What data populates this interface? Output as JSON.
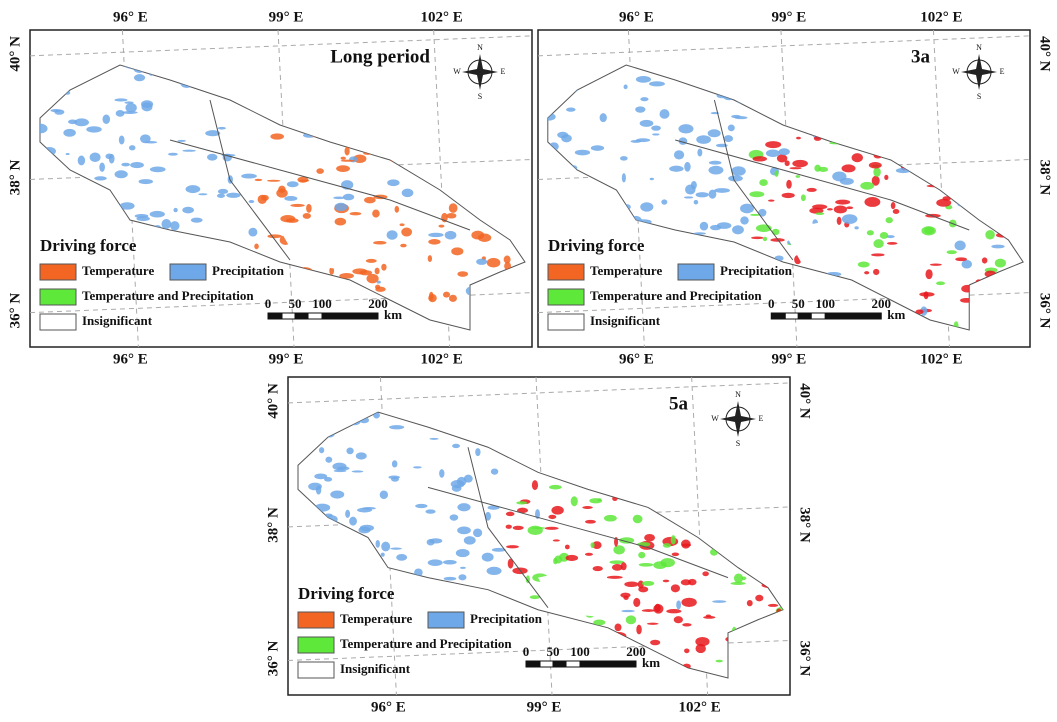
{
  "panels": [
    {
      "title": "Long period",
      "top_labels": [
        "96° E",
        "99° E",
        "102° E"
      ],
      "bottom_labels": [
        "96° E",
        "99° E",
        "102° E"
      ],
      "left_labels": [
        "40° N",
        "38° N",
        "36° N"
      ]
    },
    {
      "title": "3a",
      "top_labels": [
        "96° E",
        "99° E",
        "102° E"
      ],
      "bottom_labels": [
        "96° E",
        "99° E",
        "102° E"
      ],
      "right_labels": [
        "40° N",
        "38° N",
        "36° N"
      ]
    },
    {
      "title": "5a",
      "bottom_labels": [
        "96° E",
        "99° E",
        "102° E"
      ],
      "left_labels": [
        "40° N",
        "38° N",
        "36° N"
      ],
      "right_labels": [
        "40° N",
        "38° N",
        "36° N"
      ]
    }
  ],
  "legend": {
    "title": "Driving force",
    "items": [
      {
        "label": "Temperature",
        "color": "#f26522"
      },
      {
        "label": "Precipitation",
        "color": "#6fa8e8"
      },
      {
        "label": "Temperature and Precipitation",
        "color": "#5ee83a"
      },
      {
        "label": "Insignificant",
        "color": "#ffffff"
      }
    ]
  },
  "scale_bar": {
    "ticks": [
      "0",
      "50",
      "100",
      "200"
    ],
    "unit": "km"
  },
  "compass": {
    "n": "N",
    "s": "S",
    "e": "E",
    "w": "W"
  }
}
